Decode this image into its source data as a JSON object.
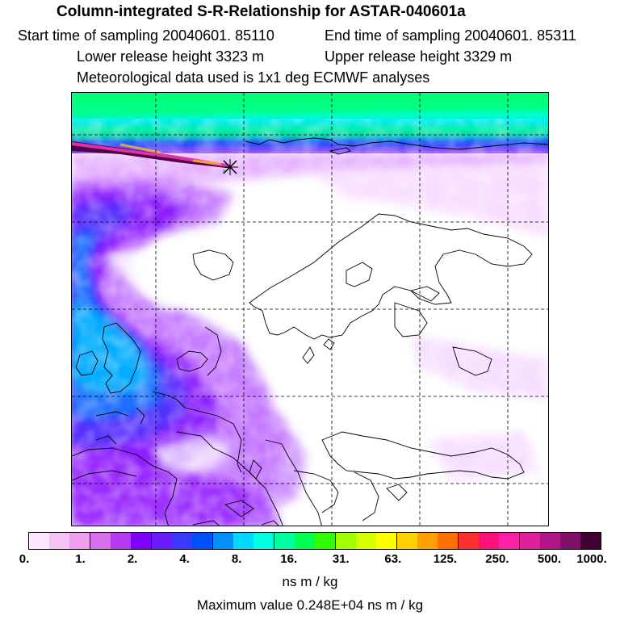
{
  "header": {
    "title": "Column-integrated S-R-Relationship for ASTAR-040601a",
    "start_time": "Start time of sampling 20040601. 85110",
    "end_time": "End time of sampling 20040601. 85311",
    "lower_height": "Lower release height 3323 m",
    "upper_height": "Upper release height 3329 m",
    "met_data": "Meteorological data used is 1x1 deg ECMWF analyses"
  },
  "colors": {
    "coast": "#000000",
    "grid": "#000000",
    "colorbar": [
      "#ffe6ff",
      "#f5c2f5",
      "#eea0ee",
      "#d870ee",
      "#b83af0",
      "#8000ff",
      "#6a1cff",
      "#3a3aff",
      "#0050ff",
      "#0090ff",
      "#00d8ff",
      "#00ffe0",
      "#00ffa0",
      "#00ff50",
      "#30ff00",
      "#a0ff00",
      "#d8ff00",
      "#ffff00",
      "#ffd000",
      "#ffa000",
      "#ff7000",
      "#ff3030",
      "#ff1078",
      "#ff20a8",
      "#e0209a",
      "#b0168a",
      "#80106a",
      "#400030"
    ]
  },
  "colorbar": {
    "ticks": [
      "0.",
      "1.",
      "2.",
      "4.",
      "8.",
      "16.",
      "31.",
      "63.",
      "125.",
      "250.",
      "500.",
      "1000."
    ],
    "units": "ns m / kg"
  },
  "footer": {
    "max_value": "Maximum value  0.248E+04 ns m / kg"
  }
}
